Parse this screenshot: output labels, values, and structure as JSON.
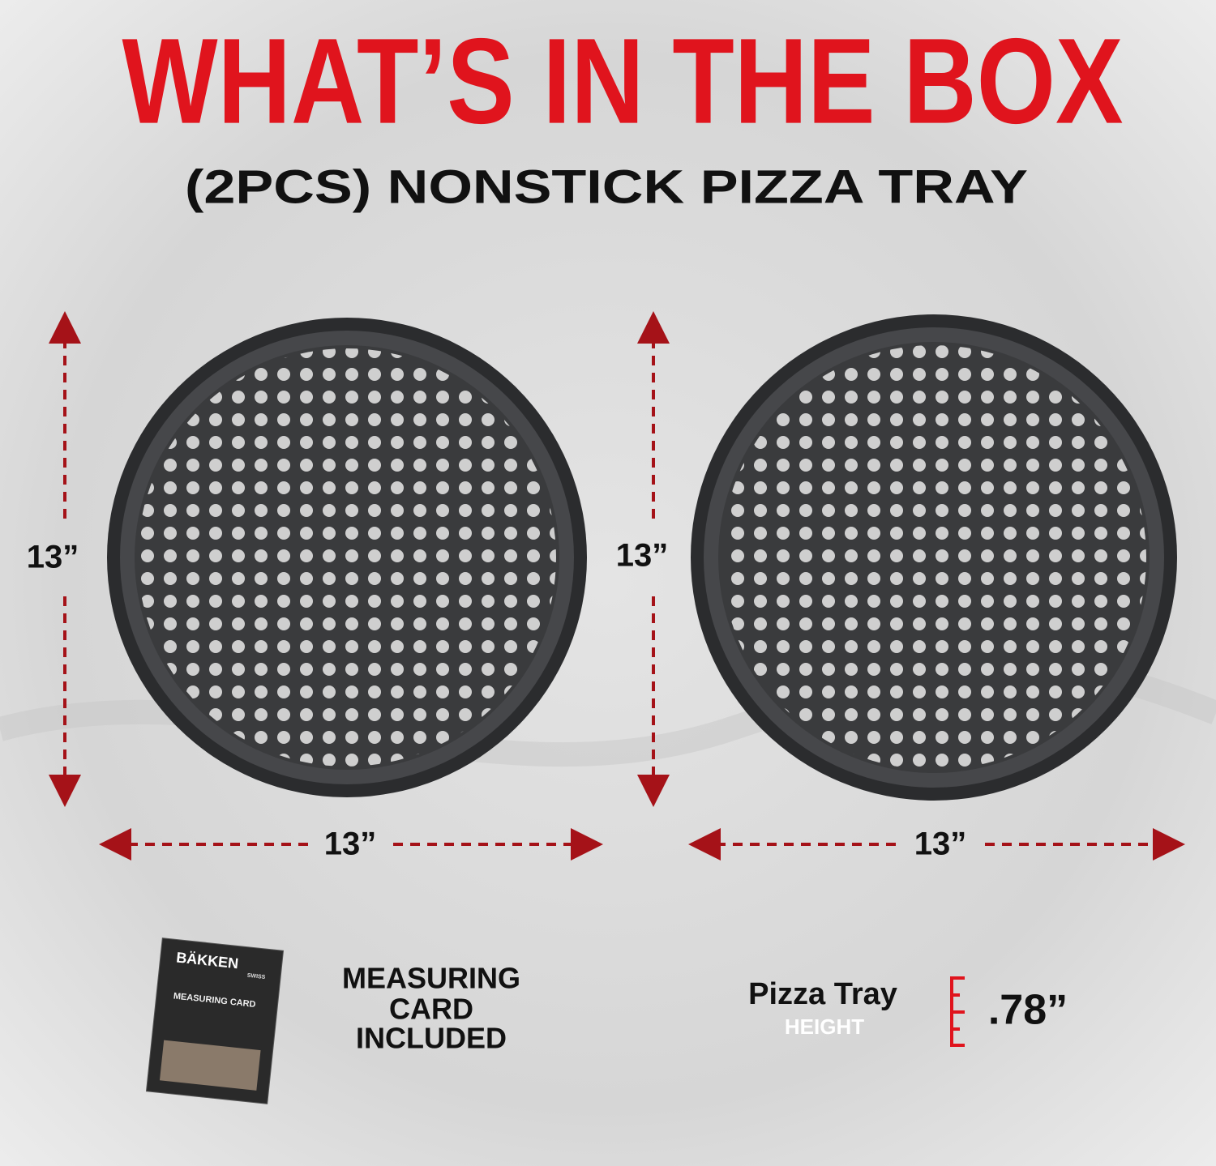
{
  "header": {
    "title": "WHAT’S IN THE BOX",
    "subtitle": "(2PCS) NONSTICK PIZZA TRAY"
  },
  "trays": [
    {
      "height_label": "13”",
      "width_label": "13”"
    },
    {
      "height_label": "13”",
      "width_label": "13”"
    }
  ],
  "card": {
    "brand": "BÄKKEN",
    "brand_sub": "SWISS",
    "card_title": "MEASURING CARD"
  },
  "included": {
    "lines": [
      "MEASURING",
      "CARD",
      "INCLUDED"
    ]
  },
  "height": {
    "label": "Pizza Tray",
    "sublabel": "HEIGHT",
    "value": ".78”"
  }
}
